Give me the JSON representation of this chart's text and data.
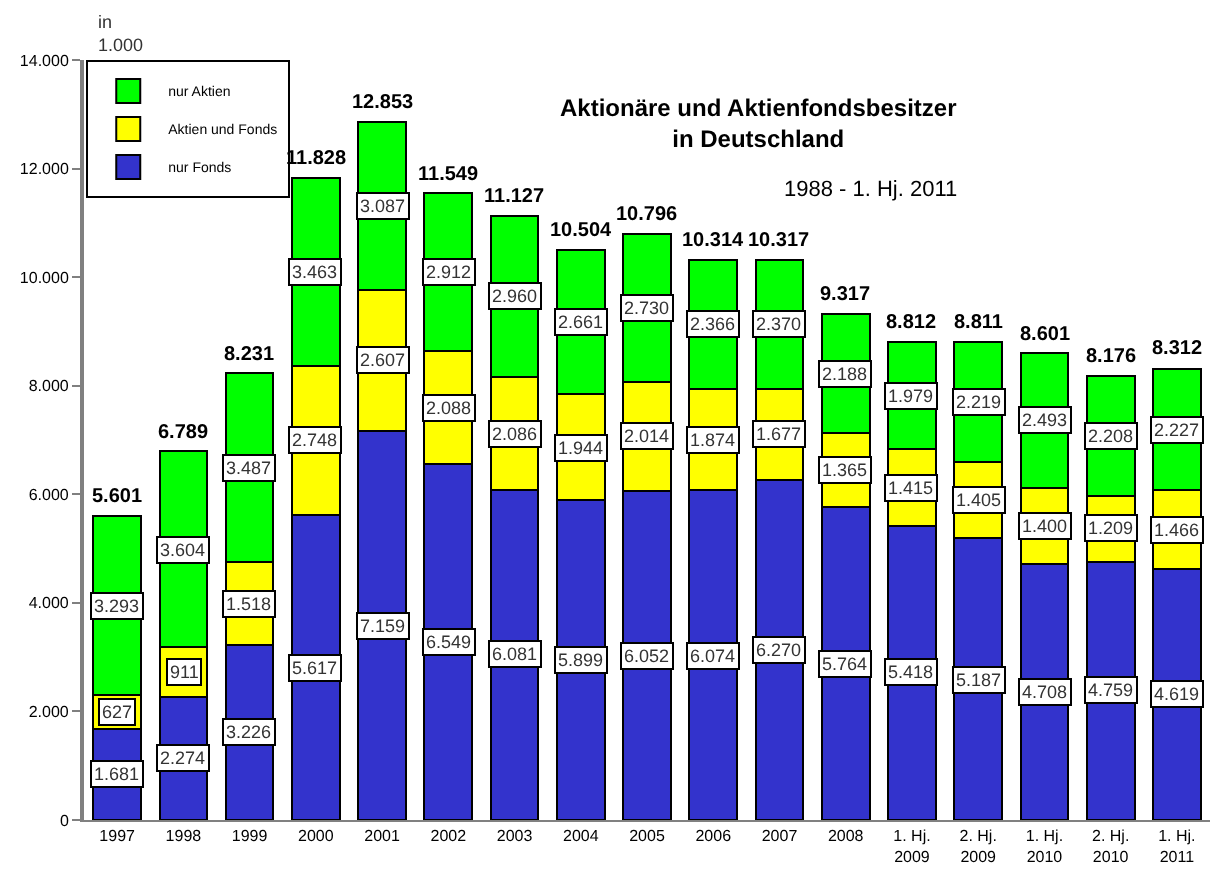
{
  "chart_data": {
    "type": "bar",
    "stacked": true,
    "title": "Aktionäre und Aktienfondsbesitzer\nin Deutschland",
    "subtitle": "1988 - 1. Hj. 2011",
    "annotations": [
      "in\n1.000"
    ],
    "categories": [
      "1997",
      "1998",
      "1999",
      "2000",
      "2001",
      "2002",
      "2003",
      "2004",
      "2005",
      "2006",
      "2007",
      "2008",
      "1. Hj.\n2009",
      "2. Hj.\n2009",
      "1. Hj.\n2010",
      "2. Hj.\n2010",
      "1. Hj.\n2011"
    ],
    "series": [
      {
        "name": "nur Fonds",
        "color": "#3333cc",
        "values": [
          1681,
          2274,
          3226,
          5617,
          7159,
          6549,
          6081,
          5899,
          6052,
          6074,
          6270,
          5764,
          5418,
          5187,
          4708,
          4759,
          4619
        ],
        "value_labels": [
          "1.681",
          "2.274",
          "3.226",
          "5.617",
          "7.159",
          "6.549",
          "6.081",
          "5.899",
          "6.052",
          "6.074",
          "6.270",
          "5.764",
          "5.418",
          "5.187",
          "4.708",
          "4.759",
          "4.619"
        ]
      },
      {
        "name": "Aktien und Fonds",
        "color": "#ffff00",
        "values": [
          627,
          911,
          1518,
          2748,
          2607,
          2088,
          2086,
          1944,
          2014,
          1874,
          1677,
          1365,
          1415,
          1405,
          1400,
          1209,
          1466
        ],
        "value_labels": [
          "627",
          "911",
          "1.518",
          "2.748",
          "2.607",
          "2.088",
          "2.086",
          "1.944",
          "2.014",
          "1.874",
          "1.677",
          "1.365",
          "1.415",
          "1.405",
          "1.400",
          "1.209",
          "1.466"
        ]
      },
      {
        "name": "nur Aktien",
        "color": "#00ff00",
        "values": [
          3293,
          3604,
          3487,
          3463,
          3087,
          2912,
          2960,
          2661,
          2730,
          2366,
          2370,
          2188,
          1979,
          2219,
          2493,
          2208,
          2227
        ],
        "value_labels": [
          "3.293",
          "3.604",
          "3.487",
          "3.463",
          "3.087",
          "2.912",
          "2.960",
          "2.661",
          "2.730",
          "2.366",
          "2.370",
          "2.188",
          "1.979",
          "2.219",
          "2.493",
          "2.208",
          "2.227"
        ]
      }
    ],
    "totals": [
      "5.601",
      "6.789",
      "8.231",
      "11.828",
      "12.853",
      "11.549",
      "11.127",
      "10.504",
      "10.796",
      "10.314",
      "10.317",
      "9.317",
      "8.812",
      "8.811",
      "8.601",
      "8.176",
      "8.312"
    ],
    "ylim": [
      0,
      14000
    ],
    "yticks": [
      {
        "value": 0,
        "label": "0"
      },
      {
        "value": 2000,
        "label": "2.000"
      },
      {
        "value": 4000,
        "label": "4.000"
      },
      {
        "value": 6000,
        "label": "6.000"
      },
      {
        "value": 8000,
        "label": "8.000"
      },
      {
        "value": 10000,
        "label": "10.000"
      },
      {
        "value": 12000,
        "label": "12.000"
      },
      {
        "value": 14000,
        "label": "14.000"
      }
    ],
    "grid": false,
    "legend": "top left"
  }
}
